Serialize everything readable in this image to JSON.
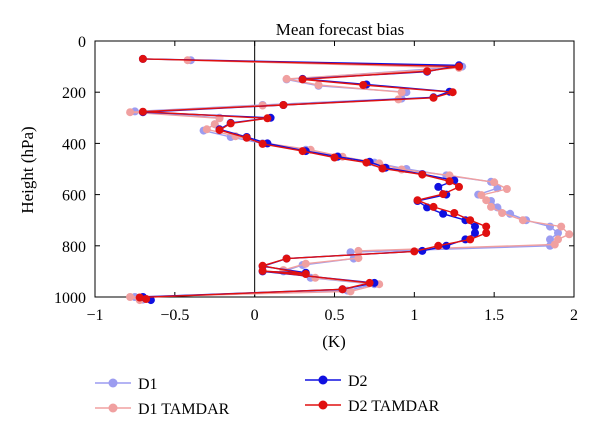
{
  "chart_data": {
    "type": "line",
    "title": "Mean forecast bias",
    "xlabel": "(K)",
    "ylabel": "Height (hPa)",
    "xlim": [
      -1,
      2
    ],
    "ylim": [
      1000,
      0
    ],
    "y_reversed": true,
    "xticks": [
      -1,
      -0.5,
      0,
      0.5,
      1,
      1.5,
      2
    ],
    "xtick_labels": [
      "−1",
      "−0.5",
      "0",
      "0.5",
      "1",
      "1.5",
      "2"
    ],
    "yticks": [
      0,
      200,
      400,
      600,
      800,
      1000
    ],
    "ytick_labels": [
      "0",
      "200",
      "400",
      "600",
      "800",
      "1000"
    ],
    "zero_line_x": 0,
    "grid": false,
    "legend_position": "bottom",
    "series": [
      {
        "name": "D1",
        "color": "#9c9cf0",
        "points": [
          [
            -0.4,
            75
          ],
          [
            1.3,
            100
          ],
          [
            0.2,
            150
          ],
          [
            0.4,
            175
          ],
          [
            0.95,
            200
          ],
          [
            0.92,
            225
          ],
          [
            0.05,
            250
          ],
          [
            -0.75,
            275
          ],
          [
            -0.22,
            300
          ],
          [
            -0.25,
            325
          ],
          [
            -0.32,
            350
          ],
          [
            -0.15,
            375
          ],
          [
            0.05,
            400
          ],
          [
            0.32,
            425
          ],
          [
            0.52,
            450
          ],
          [
            0.75,
            475
          ],
          [
            0.95,
            500
          ],
          [
            1.2,
            525
          ],
          [
            1.48,
            550
          ],
          [
            1.52,
            575
          ],
          [
            1.4,
            600
          ],
          [
            1.48,
            625
          ],
          [
            1.52,
            650
          ],
          [
            1.6,
            675
          ],
          [
            1.7,
            700
          ],
          [
            1.85,
            725
          ],
          [
            1.9,
            750
          ],
          [
            1.85,
            775
          ],
          [
            1.85,
            800
          ],
          [
            0.6,
            825
          ],
          [
            0.62,
            850
          ],
          [
            0.3,
            875
          ],
          [
            0.18,
            900
          ],
          [
            0.35,
            925
          ],
          [
            0.75,
            950
          ],
          [
            0.58,
            975
          ],
          [
            -0.75,
            1000
          ],
          [
            -0.7,
            1010
          ]
        ]
      },
      {
        "name": "D1 TAMDAR",
        "color": "#f0a0a0",
        "points": [
          [
            -0.42,
            75
          ],
          [
            1.28,
            105
          ],
          [
            0.2,
            148
          ],
          [
            0.4,
            172
          ],
          [
            0.92,
            200
          ],
          [
            0.9,
            228
          ],
          [
            0.05,
            252
          ],
          [
            -0.78,
            278
          ],
          [
            -0.22,
            302
          ],
          [
            -0.25,
            325
          ],
          [
            -0.3,
            345
          ],
          [
            -0.12,
            372
          ],
          [
            0.08,
            400
          ],
          [
            0.35,
            425
          ],
          [
            0.55,
            452
          ],
          [
            0.78,
            478
          ],
          [
            0.92,
            502
          ],
          [
            1.22,
            525
          ],
          [
            1.5,
            552
          ],
          [
            1.58,
            578
          ],
          [
            1.42,
            602
          ],
          [
            1.45,
            622
          ],
          [
            1.48,
            648
          ],
          [
            1.55,
            672
          ],
          [
            1.68,
            700
          ],
          [
            1.92,
            725
          ],
          [
            1.97,
            755
          ],
          [
            1.9,
            775
          ],
          [
            1.88,
            795
          ],
          [
            0.65,
            820
          ],
          [
            0.65,
            848
          ],
          [
            0.32,
            870
          ],
          [
            0.18,
            895
          ],
          [
            0.38,
            925
          ],
          [
            0.78,
            950
          ],
          [
            0.6,
            978
          ],
          [
            -0.78,
            1000
          ],
          [
            -0.72,
            1012
          ]
        ]
      },
      {
        "name": "D2",
        "color": "#1010e0",
        "points": [
          [
            -0.7,
            70
          ],
          [
            1.28,
            95
          ],
          [
            1.08,
            120
          ],
          [
            0.3,
            148
          ],
          [
            0.7,
            170
          ],
          [
            1.22,
            198
          ],
          [
            1.12,
            220
          ],
          [
            0.18,
            250
          ],
          [
            -0.7,
            278
          ],
          [
            0.1,
            300
          ],
          [
            -0.15,
            320
          ],
          [
            -0.22,
            345
          ],
          [
            -0.05,
            375
          ],
          [
            0.08,
            400
          ],
          [
            0.32,
            430
          ],
          [
            0.52,
            452
          ],
          [
            0.72,
            472
          ],
          [
            0.82,
            495
          ],
          [
            1.05,
            520
          ],
          [
            1.25,
            545
          ],
          [
            1.15,
            570
          ],
          [
            1.2,
            600
          ],
          [
            1.02,
            625
          ],
          [
            1.08,
            650
          ],
          [
            1.18,
            675
          ],
          [
            1.32,
            700
          ],
          [
            1.38,
            725
          ],
          [
            1.38,
            750
          ],
          [
            1.32,
            775
          ],
          [
            1.2,
            800
          ],
          [
            1.05,
            820
          ],
          [
            0.2,
            850
          ],
          [
            0.05,
            880
          ],
          [
            0.32,
            905
          ],
          [
            0.05,
            900
          ],
          [
            0.75,
            945
          ],
          [
            0.55,
            970
          ],
          [
            -0.7,
            1000
          ],
          [
            -0.65,
            1012
          ]
        ]
      },
      {
        "name": "D2 TAMDAR",
        "color": "#e01010",
        "points": [
          [
            -0.7,
            70
          ],
          [
            1.28,
            100
          ],
          [
            1.08,
            118
          ],
          [
            0.3,
            150
          ],
          [
            0.68,
            172
          ],
          [
            1.24,
            200
          ],
          [
            1.12,
            222
          ],
          [
            0.18,
            250
          ],
          [
            -0.7,
            276
          ],
          [
            0.08,
            302
          ],
          [
            -0.15,
            322
          ],
          [
            -0.22,
            348
          ],
          [
            -0.05,
            378
          ],
          [
            0.05,
            402
          ],
          [
            0.3,
            430
          ],
          [
            0.5,
            455
          ],
          [
            0.7,
            475
          ],
          [
            0.8,
            498
          ],
          [
            1.05,
            522
          ],
          [
            1.22,
            548
          ],
          [
            1.28,
            570
          ],
          [
            1.18,
            598
          ],
          [
            1.02,
            622
          ],
          [
            1.12,
            648
          ],
          [
            1.25,
            672
          ],
          [
            1.35,
            700
          ],
          [
            1.45,
            725
          ],
          [
            1.45,
            750
          ],
          [
            1.35,
            775
          ],
          [
            1.15,
            800
          ],
          [
            1.0,
            822
          ],
          [
            0.2,
            850
          ],
          [
            0.05,
            878
          ],
          [
            0.32,
            910
          ],
          [
            0.05,
            898
          ],
          [
            0.72,
            945
          ],
          [
            0.55,
            970
          ],
          [
            -0.72,
            1002
          ],
          [
            -0.68,
            1008
          ]
        ]
      }
    ]
  }
}
